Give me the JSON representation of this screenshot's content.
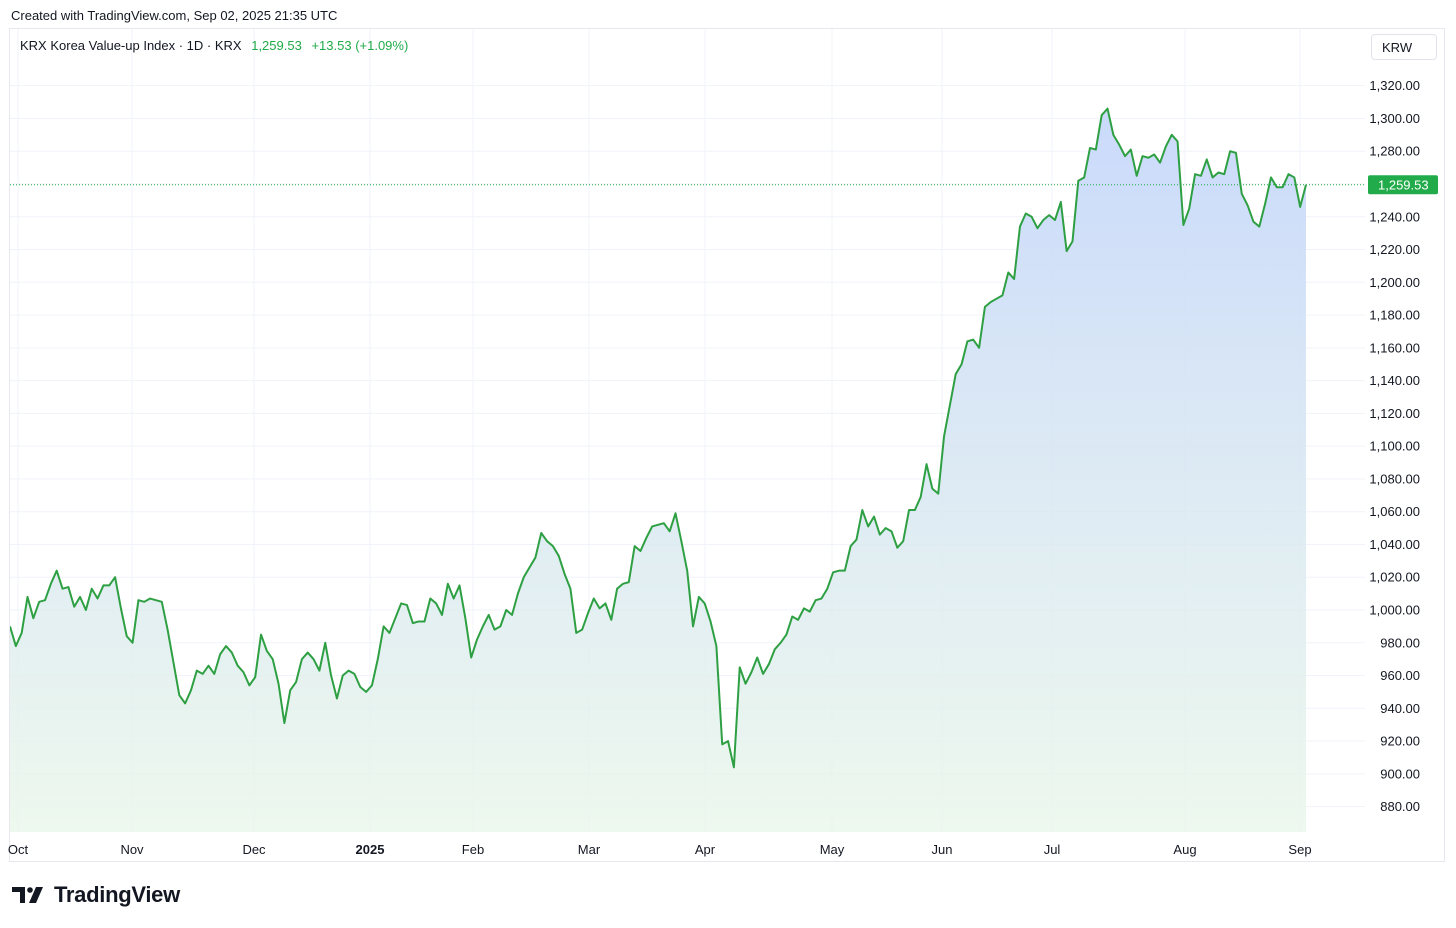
{
  "header": {
    "created_text": "Created with TradingView.com, Sep 02, 2025 21:35 UTC"
  },
  "legend": {
    "symbol": "KRX Korea Value-up Index · 1D · KRX",
    "last": "1,259.53",
    "change": "+13.53 (+1.09%)"
  },
  "currency_label": "KRW",
  "brand": {
    "name": "TradingView"
  },
  "colors": {
    "line": "#2ea043",
    "up": "#22ab4a",
    "fill_top": "#c7d8fb",
    "fill_bottom": "#e9f6ea",
    "grid": "#f0f3fa"
  },
  "chart_data": {
    "type": "area",
    "title": "",
    "xlabel": "",
    "ylabel": "",
    "ylim": [
      865,
      1340
    ],
    "y_ticks": [
      880,
      900,
      920,
      940,
      960,
      980,
      1000,
      1020,
      1040,
      1060,
      1080,
      1100,
      1120,
      1140,
      1160,
      1180,
      1200,
      1220,
      1240,
      1260,
      1280,
      1300,
      1320
    ],
    "y_tick_labels": [
      "880.00",
      "900.00",
      "920.00",
      "940.00",
      "960.00",
      "980.00",
      "1,000.00",
      "1,020.00",
      "1,040.00",
      "1,060.00",
      "1,080.00",
      "1,100.00",
      "1,120.00",
      "1,140.00",
      "1,160.00",
      "1,180.00",
      "1,200.00",
      "1,220.00",
      "1,240.00",
      "1,260.00",
      "1,280.00",
      "1,300.00",
      "1,320.00"
    ],
    "x_labels": [
      "Oct",
      "Nov",
      "Dec",
      "2025",
      "Feb",
      "Mar",
      "Apr",
      "May",
      "Jun",
      "Jul",
      "Aug",
      "Sep"
    ],
    "x_label_bold": [
      false,
      false,
      false,
      true,
      false,
      false,
      false,
      false,
      false,
      false,
      false,
      false
    ],
    "last_value": 1259.53,
    "last_value_label": "1,259.53",
    "grid": true,
    "series": [
      {
        "values": [
          990,
          978,
          986,
          1008,
          995,
          1005,
          1006,
          1016,
          1024,
          1013,
          1014,
          1002,
          1008,
          1000,
          1013,
          1007,
          1015,
          1015,
          1020,
          1001,
          984,
          980,
          1006,
          1005,
          1007,
          1006,
          1005,
          988,
          968,
          948,
          943,
          951,
          963,
          961,
          966,
          961,
          973,
          978,
          974,
          966,
          962,
          954,
          959,
          985,
          975,
          970,
          955,
          931,
          951,
          956,
          970,
          974,
          970,
          963,
          980,
          960,
          946,
          960,
          963,
          961,
          953,
          950,
          954,
          970,
          990,
          986,
          995,
          1004,
          1003,
          992,
          993,
          993,
          1007,
          1004,
          997,
          1016,
          1007,
          1015,
          995,
          971,
          982,
          990,
          997,
          988,
          990,
          1000,
          997,
          1010,
          1020,
          1026,
          1032,
          1047,
          1042,
          1039,
          1033,
          1022,
          1013,
          986,
          988,
          998,
          1007,
          1001,
          1004,
          994,
          1013,
          1016,
          1017,
          1039,
          1036,
          1044,
          1051,
          1052,
          1053,
          1048,
          1059,
          1042,
          1024,
          990,
          1008,
          1004,
          993,
          978,
          918,
          920,
          904,
          965,
          955,
          962,
          971,
          961,
          967,
          976,
          980,
          985,
          996,
          994,
          1001,
          999,
          1006,
          1007,
          1013,
          1023,
          1024,
          1024,
          1039,
          1043,
          1061,
          1051,
          1057,
          1046,
          1050,
          1048,
          1038,
          1042,
          1061,
          1061,
          1069,
          1089,
          1074,
          1071,
          1106,
          1125,
          1144,
          1150,
          1164,
          1165,
          1160,
          1185,
          1188,
          1190,
          1192,
          1206,
          1202,
          1234,
          1242,
          1240,
          1233,
          1238,
          1241,
          1238,
          1249,
          1219,
          1225,
          1262,
          1264,
          1282,
          1281,
          1302,
          1306,
          1290,
          1284,
          1277,
          1281,
          1265,
          1277,
          1276,
          1278,
          1273,
          1283,
          1290,
          1286,
          1235,
          1245,
          1266,
          1265,
          1275,
          1264,
          1267,
          1266,
          1280,
          1279,
          1254,
          1247,
          1237,
          1234,
          1248,
          1264,
          1258,
          1258,
          1266,
          1264,
          1246,
          1259.53
        ]
      }
    ]
  }
}
